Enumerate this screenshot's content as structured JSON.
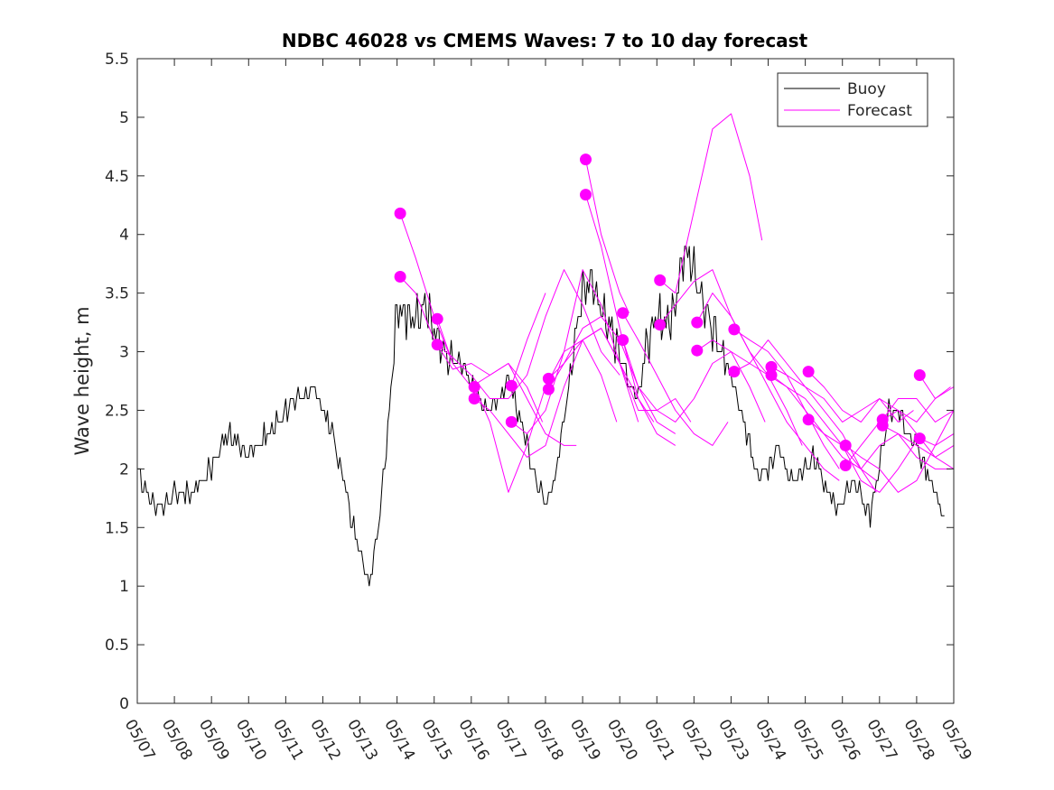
{
  "chart_data": {
    "type": "line",
    "title": "NDBC 46028 vs CMEMS Waves: 7 to 10 day forecast",
    "xlabel": "",
    "ylabel": "Wave height, m",
    "xlim": [
      "05/07",
      "05/29"
    ],
    "ylim": [
      0,
      5.5
    ],
    "yticks": [
      "0",
      "0.5",
      "1",
      "1.5",
      "2",
      "2.5",
      "3",
      "3.5",
      "4",
      "4.5",
      "5",
      "5.5"
    ],
    "xticks": [
      "05/07",
      "05/08",
      "05/09",
      "05/10",
      "05/11",
      "05/12",
      "05/13",
      "05/14",
      "05/15",
      "05/16",
      "05/17",
      "05/18",
      "05/19",
      "05/20",
      "05/21",
      "05/22",
      "05/23",
      "05/24",
      "05/25",
      "05/26",
      "05/27",
      "05/28",
      "05/29"
    ],
    "grid": false,
    "legend": {
      "position": "top-right",
      "entries": [
        "Buoy",
        "Forecast"
      ]
    },
    "colors": {
      "buoy": "#000000",
      "forecast": "#ff00ff"
    },
    "buoy": {
      "name": "Buoy",
      "x": [
        "05/07 00:00",
        "05/07 06:00",
        "05/07 12:00",
        "05/07 18:00",
        "05/08 00:00",
        "05/08 06:00",
        "05/08 12:00",
        "05/08 18:00",
        "05/09 00:00",
        "05/09 06:00",
        "05/09 12:00",
        "05/09 18:00",
        "05/10 00:00",
        "05/10 06:00",
        "05/10 12:00",
        "05/10 18:00",
        "05/11 00:00",
        "05/11 06:00",
        "05/11 12:00",
        "05/11 18:00",
        "05/12 00:00",
        "05/12 06:00",
        "05/12 12:00",
        "05/12 18:00",
        "05/13 00:00",
        "05/13 06:00",
        "05/13 12:00",
        "05/13 18:00",
        "05/14 00:00",
        "05/14 06:00",
        "05/14 12:00",
        "05/14 18:00",
        "05/15 00:00",
        "05/15 06:00",
        "05/15 12:00",
        "05/15 18:00",
        "05/16 00:00",
        "05/16 06:00",
        "05/16 12:00",
        "05/16 18:00",
        "05/17 00:00",
        "05/17 06:00",
        "05/17 12:00",
        "05/17 18:00",
        "05/18 00:00",
        "05/18 06:00",
        "05/18 12:00",
        "05/18 18:00",
        "05/19 00:00",
        "05/19 06:00",
        "05/19 12:00",
        "05/19 18:00",
        "05/20 00:00",
        "05/20 06:00",
        "05/20 12:00",
        "05/20 18:00",
        "05/21 00:00",
        "05/21 06:00",
        "05/21 12:00",
        "05/21 18:00",
        "05/22 00:00",
        "05/22 06:00",
        "05/22 12:00",
        "05/22 18:00",
        "05/23 00:00",
        "05/23 06:00",
        "05/23 12:00",
        "05/23 18:00",
        "05/24 00:00",
        "05/24 06:00",
        "05/24 12:00",
        "05/24 18:00",
        "05/25 00:00",
        "05/25 06:00",
        "05/25 12:00",
        "05/25 18:00",
        "05/26 00:00",
        "05/26 06:00",
        "05/26 12:00",
        "05/26 18:00",
        "05/27 00:00",
        "05/27 06:00",
        "05/27 12:00",
        "05/27 18:00",
        "05/28 00:00",
        "05/28 06:00",
        "05/28 12:00",
        "05/28 18:00"
      ],
      "values": [
        2.0,
        1.8,
        1.7,
        1.7,
        1.8,
        1.8,
        1.8,
        1.9,
        2.0,
        2.2,
        2.3,
        2.2,
        2.1,
        2.2,
        2.3,
        2.4,
        2.5,
        2.6,
        2.6,
        2.7,
        2.5,
        2.3,
        2.0,
        1.6,
        1.3,
        1.0,
        1.5,
        2.3,
        3.4,
        3.3,
        3.3,
        3.4,
        3.2,
        3.0,
        2.9,
        2.9,
        2.7,
        2.6,
        2.5,
        2.6,
        2.8,
        2.5,
        2.2,
        1.9,
        1.7,
        1.9,
        2.4,
        3.0,
        3.5,
        3.6,
        3.4,
        3.2,
        3.0,
        2.7,
        2.6,
        3.1,
        3.3,
        3.2,
        3.4,
        3.9,
        3.7,
        3.4,
        3.2,
        3.0,
        2.8,
        2.5,
        2.2,
        1.9,
        2.0,
        2.2,
        2.0,
        1.9,
        2.0,
        2.1,
        1.9,
        1.7,
        1.7,
        1.9,
        1.8,
        1.6,
        2.0,
        2.5,
        2.5,
        2.3,
        2.2,
        2.0,
        1.8,
        1.6
      ]
    },
    "forecast": {
      "name": "Forecast",
      "series": [
        {
          "x": [
            "05/14 02:00",
            "05/14 12:00",
            "05/15 00:00",
            "05/15 12:00"
          ],
          "values": [
            4.18,
            3.8,
            3.3,
            2.9
          ]
        },
        {
          "x": [
            "05/14 02:00",
            "05/14 12:00",
            "05/15 00:00",
            "05/15 12:00",
            "05/16 00:00",
            "05/16 12:00",
            "05/17 00:00",
            "05/17 12:00",
            "05/17 22:00"
          ],
          "values": [
            3.64,
            3.5,
            3.1,
            2.85,
            2.9,
            2.8,
            2.9,
            2.7,
            2.4
          ]
        },
        {
          "x": [
            "05/15 02:00",
            "05/15 12:00",
            "05/16 00:00",
            "05/16 12:00",
            "05/17 00:00",
            "05/17 12:00",
            "05/18 00:00",
            "05/18 12:00",
            "05/18 20:00"
          ],
          "values": [
            3.28,
            2.9,
            2.7,
            2.8,
            2.9,
            2.6,
            2.3,
            2.2,
            2.2
          ]
        },
        {
          "x": [
            "05/15 02:00",
            "05/15 12:00",
            "05/16 00:00",
            "05/16 12:00",
            "05/17 00:00",
            "05/17 12:00",
            "05/18 00:00",
            "05/18 12:00",
            "05/19 00:00",
            "05/19 12:00",
            "05/20 00:00"
          ],
          "values": [
            3.06,
            2.95,
            2.8,
            2.6,
            2.6,
            2.8,
            3.3,
            3.7,
            3.4,
            3.0,
            2.8
          ]
        },
        {
          "x": [
            "05/16 02:00",
            "05/16 12:00",
            "05/17 00:00",
            "05/17 12:00",
            "05/18 00:00",
            "05/18 12:00",
            "05/19 00:00",
            "05/19 12:00",
            "05/19 22:00"
          ],
          "values": [
            2.7,
            2.4,
            1.8,
            2.2,
            2.7,
            3.0,
            3.1,
            2.8,
            2.4
          ]
        },
        {
          "x": [
            "05/16 02:00",
            "05/16 12:00",
            "05/17 00:00",
            "05/17 12:00",
            "05/18 00:00",
            "05/18 12:00",
            "05/19 00:00",
            "05/19 12:00",
            "05/20 00:00",
            "05/20 12:00"
          ],
          "values": [
            2.6,
            2.5,
            2.3,
            2.1,
            2.2,
            2.7,
            3.1,
            3.2,
            2.9,
            2.4
          ]
        },
        {
          "x": [
            "05/17 02:00",
            "05/17 12:00",
            "05/18 00:00"
          ],
          "values": [
            2.71,
            3.1,
            3.5
          ]
        },
        {
          "x": [
            "05/17 02:00",
            "05/17 12:00",
            "05/18 00:00",
            "05/18 12:00",
            "05/19 00:00",
            "05/19 12:00",
            "05/20 00:00",
            "05/20 12:00",
            "05/20 22:00"
          ],
          "values": [
            2.4,
            2.3,
            2.5,
            3.0,
            3.7,
            3.4,
            2.9,
            2.6,
            2.4
          ]
        },
        {
          "x": [
            "05/18 02:00",
            "05/18 12:00",
            "05/19 00:00",
            "05/19 12:00",
            "05/20 00:00",
            "05/20 12:00",
            "05/21 00:00",
            "05/21 12:00"
          ],
          "values": [
            2.77,
            2.9,
            3.2,
            3.3,
            3.1,
            2.7,
            2.4,
            2.3
          ]
        },
        {
          "x": [
            "05/18 02:00",
            "05/18 12:00",
            "05/19 00:00",
            "05/19 12:00",
            "05/20 00:00",
            "05/20 12:00",
            "05/21 00:00",
            "05/21 12:00",
            "05/21 22:00"
          ],
          "values": [
            2.68,
            2.9,
            3.1,
            3.2,
            2.9,
            2.5,
            2.5,
            2.6,
            2.4
          ]
        },
        {
          "x": [
            "05/19 02:00",
            "05/19 12:00",
            "05/20 00:00",
            "05/20 06:00"
          ],
          "values": [
            4.64,
            4.0,
            3.5,
            3.33
          ]
        },
        {
          "x": [
            "05/19 02:00",
            "05/19 12:00",
            "05/20 00:00",
            "05/20 12:00",
            "05/21 00:00",
            "05/21 12:00"
          ],
          "values": [
            4.34,
            3.9,
            3.2,
            2.6,
            2.3,
            2.2
          ]
        },
        {
          "x": [
            "05/20 02:00",
            "05/20 12:00",
            "05/21 00:00",
            "05/21 12:00",
            "05/22 00:00",
            "05/22 12:00",
            "05/22 22:00"
          ],
          "values": [
            3.33,
            3.1,
            2.8,
            2.5,
            2.3,
            2.2,
            2.4
          ]
        },
        {
          "x": [
            "05/20 02:00",
            "05/20 12:00",
            "05/21 00:00",
            "05/21 12:00",
            "05/22 00:00",
            "05/22 12:00",
            "05/23 00:00",
            "05/23 12:00",
            "05/23 22:00"
          ],
          "values": [
            3.1,
            2.7,
            2.5,
            2.4,
            2.6,
            2.9,
            3.0,
            2.7,
            2.4
          ]
        },
        {
          "x": [
            "05/21 02:00",
            "05/21 12:00",
            "05/22 00:00",
            "05/22 12:00",
            "05/23 00:00",
            "05/23 12:00",
            "05/23 20:00"
          ],
          "values": [
            3.61,
            3.5,
            4.2,
            4.9,
            5.03,
            4.5,
            3.95
          ]
        },
        {
          "x": [
            "05/21 02:00",
            "05/21 12:00",
            "05/22 00:00",
            "05/22 12:00",
            "05/23 00:00",
            "05/23 12:00",
            "05/24 00:00",
            "05/24 12:00",
            "05/24 22:00"
          ],
          "values": [
            3.23,
            3.4,
            3.6,
            3.7,
            3.3,
            3.0,
            2.8,
            2.5,
            2.2
          ]
        },
        {
          "x": [
            "05/22 02:00",
            "05/22 12:00",
            "05/23 00:00",
            "05/23 12:00",
            "05/24 00:00",
            "05/24 12:00",
            "05/25 00:00",
            "05/25 12:00",
            "05/25 22:00"
          ],
          "values": [
            3.25,
            3.5,
            3.3,
            3.0,
            2.7,
            2.4,
            2.2,
            2.0,
            1.9
          ]
        },
        {
          "x": [
            "05/22 02:00",
            "05/22 12:00",
            "05/23 00:00",
            "05/23 12:00",
            "05/24 00:00",
            "05/24 12:00",
            "05/25 00:00",
            "05/25 12:00",
            "05/25 22:00"
          ],
          "values": [
            3.01,
            3.1,
            3.0,
            2.9,
            2.8,
            2.7,
            2.5,
            2.2,
            2.0
          ]
        },
        {
          "x": [
            "05/23 02:00",
            "05/23 12:00",
            "05/24 00:00",
            "05/24 12:00",
            "05/25 00:00",
            "05/25 12:00",
            "05/26 00:00",
            "05/26 12:00",
            "05/26 22:00"
          ],
          "values": [
            3.19,
            3.1,
            3.0,
            2.8,
            2.5,
            2.3,
            2.2,
            2.0,
            1.9
          ]
        },
        {
          "x": [
            "05/23 02:00",
            "05/23 12:00",
            "05/24 00:00",
            "05/24 12:00",
            "05/25 00:00",
            "05/25 12:00",
            "05/26 00:00",
            "05/26 12:00",
            "05/26 22:00"
          ],
          "values": [
            2.83,
            2.9,
            3.1,
            2.9,
            2.7,
            2.5,
            2.3,
            2.0,
            1.8
          ]
        },
        {
          "x": [
            "05/24 02:00",
            "05/24 12:00",
            "05/25 00:00",
            "05/25 12:00",
            "05/26 00:00",
            "05/26 12:00",
            "05/27 00:00",
            "05/27 12:00",
            "05/27 22:00"
          ],
          "values": [
            2.87,
            2.8,
            2.7,
            2.6,
            2.4,
            2.5,
            2.6,
            2.4,
            2.5
          ]
        },
        {
          "x": [
            "05/24 02:00",
            "05/24 12:00",
            "05/25 00:00",
            "05/25 12:00",
            "05/26 00:00",
            "05/26 12:00",
            "05/27 00:00",
            "05/27 12:00",
            "05/27 22:00"
          ],
          "values": [
            2.8,
            2.7,
            2.6,
            2.4,
            2.2,
            1.9,
            1.8,
            2.0,
            2.2
          ]
        },
        {
          "x": [
            "05/25 02:00",
            "05/25 12:00",
            "05/26 00:00",
            "05/26 12:00",
            "05/27 00:00",
            "05/27 12:00",
            "05/28 00:00",
            "05/28 12:00",
            "05/28 22:00"
          ],
          "values": [
            2.83,
            2.7,
            2.5,
            2.4,
            2.6,
            2.5,
            2.4,
            2.6,
            2.7
          ]
        },
        {
          "x": [
            "05/25 02:00",
            "05/25 12:00",
            "05/26 00:00",
            "05/26 12:00",
            "05/27 00:00",
            "05/27 12:00",
            "05/28 00:00",
            "05/28 12:00",
            "05/28 22:00"
          ],
          "values": [
            2.42,
            2.3,
            2.1,
            2.0,
            2.2,
            2.3,
            2.1,
            2.0,
            2.0
          ]
        },
        {
          "x": [
            "05/26 02:00",
            "05/26 12:00",
            "05/27 00:00",
            "05/27 12:00",
            "05/28 00:00",
            "05/28 12:00",
            "05/29 00:00"
          ],
          "values": [
            2.2,
            2.1,
            2.0,
            1.8,
            1.9,
            2.2,
            2.5
          ]
        },
        {
          "x": [
            "05/26 02:00",
            "05/26 12:00",
            "05/27 00:00",
            "05/27 12:00",
            "05/28 00:00",
            "05/28 12:00",
            "05/29 00:00"
          ],
          "values": [
            2.03,
            2.2,
            2.4,
            2.5,
            2.3,
            2.1,
            2.2
          ]
        },
        {
          "x": [
            "05/27 02:00",
            "05/27 12:00",
            "05/28 00:00",
            "05/28 12:00",
            "05/29 00:00"
          ],
          "values": [
            2.42,
            2.6,
            2.6,
            2.4,
            2.5
          ]
        },
        {
          "x": [
            "05/27 02:00",
            "05/27 12:00",
            "05/28 00:00",
            "05/28 12:00",
            "05/29 00:00"
          ],
          "values": [
            2.37,
            2.3,
            2.2,
            2.1,
            2.0
          ]
        },
        {
          "x": [
            "05/28 02:00",
            "05/28 12:00",
            "05/29 00:00"
          ],
          "values": [
            2.8,
            2.6,
            2.7
          ]
        },
        {
          "x": [
            "05/28 02:00",
            "05/28 12:00",
            "05/29 00:00"
          ],
          "values": [
            2.26,
            2.2,
            2.3
          ]
        }
      ]
    }
  }
}
